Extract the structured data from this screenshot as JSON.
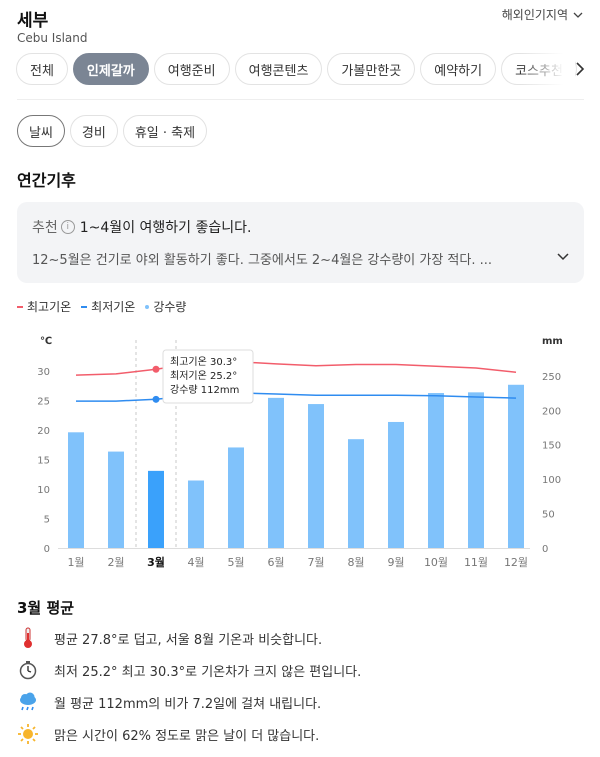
{
  "header": {
    "title": "세부",
    "subtitle": "Cebu Island",
    "region": "해외인기지역"
  },
  "tabs": [
    "전체",
    "인제갈까",
    "여행준비",
    "여행콘텐츠",
    "가볼만한곳",
    "예약하기",
    "코스추천"
  ],
  "subtabs": [
    "날씨",
    "경비",
    "휴일 · 축제"
  ],
  "section_title": "연간기후",
  "recommend": {
    "label": "추천",
    "text": "1~4월이 여행하기 좋습니다.",
    "detail": "12~5월은 건기로 야외 활동하기 좋다. 그중에서도 2~4월은 강수량이 가장 적다. ..."
  },
  "legend": {
    "high": "최고기온",
    "low": "최저기온",
    "rain": "강수량"
  },
  "colors": {
    "high": "#f25d6b",
    "low": "#2f8cf0",
    "bar": "#80c2fb",
    "bar_selected": "#3aa1fb"
  },
  "chart_data": {
    "type": "bar",
    "categories": [
      "1월",
      "2월",
      "3월",
      "4월",
      "5월",
      "6월",
      "7월",
      "8월",
      "9월",
      "10월",
      "11월",
      "12월"
    ],
    "series": [
      {
        "name": "강수량",
        "type": "bar",
        "values": [
          168,
          140,
          112,
          98,
          146,
          218,
          209,
          158,
          183,
          225,
          226,
          237
        ]
      },
      {
        "name": "최고기온",
        "type": "line",
        "values": [
          29.3,
          29.5,
          30.3,
          31.3,
          31.6,
          31.2,
          30.9,
          31.1,
          31.1,
          30.8,
          30.5,
          29.8
        ]
      },
      {
        "name": "최저기온",
        "type": "line",
        "values": [
          24.9,
          24.9,
          25.2,
          25.9,
          26.3,
          26.1,
          25.9,
          25.9,
          25.9,
          25.8,
          25.6,
          25.4
        ]
      }
    ],
    "left_axis": {
      "unit": "℃",
      "ticks": [
        0,
        5,
        10,
        15,
        20,
        25,
        30
      ],
      "range": [
        0,
        30
      ]
    },
    "right_axis": {
      "unit": "mm",
      "ticks": [
        0,
        50,
        100,
        150,
        200,
        250
      ],
      "range": [
        0,
        257
      ]
    },
    "selected_index": 2,
    "tooltip": [
      "최고기온 30.3°",
      "최저기온 25.2°",
      "강수량 112mm"
    ]
  },
  "average": {
    "title": "3월 평균",
    "items": [
      {
        "icon": "thermometer-icon",
        "text": "평균 27.8°로 덥고, 서울 8월 기온과 비슷합니다."
      },
      {
        "icon": "clock-icon",
        "text": "최저 25.2° 최고 30.3°로 기온차가 크지 않은 편입니다."
      },
      {
        "icon": "rain-cloud-icon",
        "text": "월 평균 112mm의 비가 7.2일에 걸쳐 내립니다."
      },
      {
        "icon": "sun-icon",
        "text": "맑은 시간이 62% 정도로 맑은 날이 더 많습니다."
      }
    ]
  }
}
